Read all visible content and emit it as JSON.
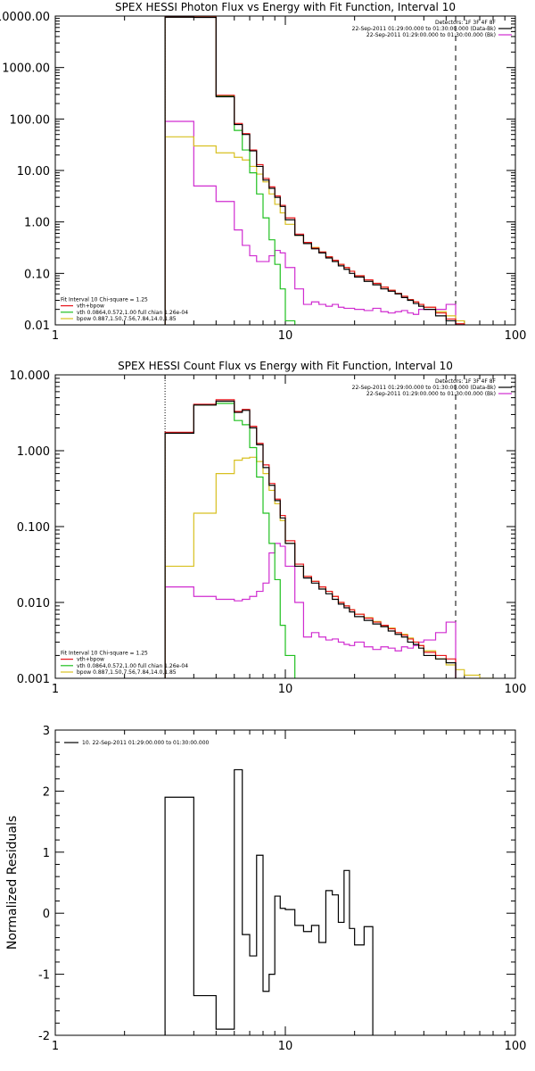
{
  "colors": {
    "axes": "#000000",
    "total": "#000000",
    "fit_sum": "#e8151b",
    "vth": "#20c020",
    "bpow": "#d8c020",
    "background": "#d02cd0",
    "fit_range": "#000000"
  },
  "chart_data": [
    {
      "type": "line",
      "title": "SPEX HESSI Photon Flux vs Energy with Fit Function, Interval 10",
      "xscale": "log",
      "yscale": "log",
      "xlim": [
        1,
        100
      ],
      "ylim": [
        0.01,
        10000
      ],
      "xticks": [
        1,
        10,
        100
      ],
      "xticklabels": [
        "1",
        "10",
        "100"
      ],
      "yticks": [
        0.01,
        0.1,
        1,
        10,
        100,
        1000,
        10000
      ],
      "yticklabels": [
        "0.01",
        "0.10",
        "1.00",
        "10.00",
        "100.00",
        "1000.00",
        "10000.00"
      ],
      "xlabel": "",
      "ylabel": "",
      "legend_top": {
        "position": "top-right",
        "lines": [
          {
            "text": "Detectors: 1F 3F 4F 8F",
            "color": ""
          },
          {
            "text": "22-Sep-2011 01:29:00.000 to 01:30:00.000 (Data-Bk)",
            "color": "#000000"
          },
          {
            "text": "22-Sep-2011 01:29:00.000 to 01:30:00.000 (Bk)",
            "color": "#d02cd0"
          }
        ]
      },
      "legend_bottom": {
        "position": "bottom-left",
        "lines": [
          {
            "text": "Fit Interval 10   Chi-square = 1.25",
            "color": ""
          },
          {
            "text": "vth+bpow",
            "color": "#e8151b"
          },
          {
            "text": "vth 0.0864,0.572,1.00  full chian 1.26e-04",
            "color": "#20c020"
          },
          {
            "text": "bpow 0.887,1.50,7.56,7.84,14.0,1.85",
            "color": "#d8c020"
          }
        ]
      },
      "fit_range": [
        3,
        55
      ],
      "edges": [
        3,
        4,
        5,
        6,
        6.5,
        7,
        7.5,
        8,
        8.5,
        9,
        9.5,
        10,
        11,
        12,
        13,
        14,
        15,
        16,
        17,
        18,
        19,
        20,
        22,
        24,
        26,
        28,
        30,
        32,
        34,
        36,
        38,
        40,
        45,
        50,
        55,
        60
      ],
      "series": [
        {
          "name": "",
          "color": "#000000",
          "values": [
            9500,
            9400,
            270,
            78,
            50,
            24,
            12,
            6.5,
            4.5,
            3.0,
            2.0,
            1.1,
            0.55,
            0.38,
            0.3,
            0.25,
            0.2,
            0.17,
            0.14,
            0.12,
            0.1,
            0.085,
            0.07,
            0.06,
            0.05,
            0.045,
            0.04,
            0.034,
            0.03,
            0.026,
            0.023,
            0.02,
            0.015,
            0.012,
            0.01
          ]
        },
        {
          "name": "vth+bpow",
          "color": "#e8151b",
          "values": [
            9600,
            9500,
            290,
            82,
            52,
            25,
            13,
            7,
            4.8,
            3.2,
            2.1,
            1.2,
            0.58,
            0.4,
            0.31,
            0.26,
            0.21,
            0.18,
            0.15,
            0.13,
            0.11,
            0.09,
            0.075,
            0.064,
            0.054,
            0.047,
            0.041,
            0.036,
            0.031,
            0.028,
            0.025,
            0.022,
            0.017,
            0.013,
            0.0105
          ]
        },
        {
          "name": "vth 0.0864,0.572,1.00  full chian 1.26e-04",
          "color": "#20c020",
          "values": [
            9600,
            9500,
            280,
            60,
            25,
            9,
            3.5,
            1.2,
            0.45,
            0.15,
            0.05,
            0.012,
            0.009,
            0.009,
            0.009,
            0.009,
            0.009,
            0.009,
            0.009,
            0.009,
            0.009,
            0.009,
            0.009,
            0.009,
            0.009,
            0.009,
            0.009,
            0.009,
            0.009,
            0.009,
            0.009,
            0.009,
            0.009,
            0.009,
            0.009
          ]
        },
        {
          "name": "bpow 0.887,1.50,7.56,7.84,14.0,1.85",
          "color": "#d8c020",
          "values": [
            45,
            30,
            22,
            18,
            16,
            12,
            8.5,
            6,
            3.5,
            2.2,
            1.5,
            0.9,
            0.55,
            0.4,
            0.32,
            0.26,
            0.21,
            0.18,
            0.15,
            0.13,
            0.11,
            0.09,
            0.075,
            0.064,
            0.054,
            0.047,
            0.041,
            0.036,
            0.031,
            0.028,
            0.025,
            0.022,
            0.018,
            0.015,
            0.012
          ]
        },
        {
          "name": "22-Sep-2011 01:29:00.000 to 01:30:00.000 (Bk)",
          "color": "#d02cd0",
          "values": [
            90,
            5,
            2.5,
            0.7,
            0.35,
            0.22,
            0.17,
            0.17,
            0.22,
            0.28,
            0.25,
            0.13,
            0.05,
            0.025,
            0.028,
            0.025,
            0.023,
            0.025,
            0.022,
            0.021,
            0.021,
            0.02,
            0.019,
            0.021,
            0.018,
            0.017,
            0.018,
            0.019,
            0.017,
            0.016,
            0.02,
            0.02,
            0.02,
            0.025,
            0.01
          ]
        }
      ]
    },
    {
      "type": "line",
      "title": "SPEX HESSI Count Flux vs Energy with Fit Function, Interval 10",
      "xscale": "log",
      "yscale": "log",
      "xlim": [
        1,
        100
      ],
      "ylim": [
        0.001,
        10
      ],
      "xticks": [
        1,
        10,
        100
      ],
      "xticklabels": [
        "1",
        "10",
        "100"
      ],
      "yticks": [
        0.001,
        0.01,
        0.1,
        1,
        10
      ],
      "yticklabels": [
        "0.001",
        "0.010",
        "0.100",
        "1.000",
        "10.000"
      ],
      "xlabel": "",
      "ylabel": "",
      "legend_top": {
        "position": "top-right",
        "lines": [
          {
            "text": "Detectors: 1F 3F 4F 8F",
            "color": ""
          },
          {
            "text": "22-Sep-2011 01:29:00.000 to 01:30:00.000 (Data-Bk)",
            "color": "#000000"
          },
          {
            "text": "22-Sep-2011 01:29:00.000 to 01:30:00.000 (Bk)",
            "color": "#d02cd0"
          }
        ]
      },
      "legend_bottom": {
        "position": "bottom-left",
        "lines": [
          {
            "text": "Fit Interval 10   Chi-square = 1.25",
            "color": ""
          },
          {
            "text": "vth+bpow",
            "color": "#e8151b"
          },
          {
            "text": "vth 0.0864,0.572,1.00  full chian 1.26e-04",
            "color": "#20c020"
          },
          {
            "text": "bpow 0.887,1.50,7.56,7.84,14.0,1.85",
            "color": "#d8c020"
          }
        ]
      },
      "fit_range": [
        3,
        55
      ],
      "edges": [
        3,
        4,
        5,
        6,
        6.5,
        7,
        7.5,
        8,
        8.5,
        9,
        9.5,
        10,
        11,
        12,
        13,
        14,
        15,
        16,
        17,
        18,
        19,
        20,
        22,
        24,
        26,
        28,
        30,
        32,
        34,
        36,
        38,
        40,
        45,
        50,
        55,
        60,
        70,
        80,
        90
      ],
      "series": [
        {
          "name": "",
          "color": "#000000",
          "values": [
            1.7,
            4.0,
            4.5,
            3.2,
            3.4,
            2.0,
            1.2,
            0.6,
            0.35,
            0.22,
            0.13,
            0.06,
            0.03,
            0.021,
            0.018,
            0.015,
            0.013,
            0.011,
            0.0095,
            0.0085,
            0.0075,
            0.0065,
            0.0058,
            0.0052,
            0.0048,
            0.0042,
            0.0038,
            0.0035,
            0.003,
            0.0028,
            0.0025,
            0.002,
            0.0018,
            0.0016
          ]
        },
        {
          "name": "vth+bpow",
          "color": "#e8151b",
          "values": [
            1.75,
            4.1,
            4.7,
            3.3,
            3.5,
            2.1,
            1.25,
            0.65,
            0.37,
            0.23,
            0.14,
            0.065,
            0.032,
            0.022,
            0.019,
            0.016,
            0.014,
            0.012,
            0.01,
            0.009,
            0.008,
            0.007,
            0.0062,
            0.0055,
            0.005,
            0.0045,
            0.004,
            0.0037,
            0.0033,
            0.003,
            0.0027,
            0.0022,
            0.002,
            0.0018
          ]
        },
        {
          "name": "vth 0.0864,0.572,1.00  full chian 1.26e-04",
          "color": "#20c020",
          "values": [
            1.7,
            4.0,
            4.2,
            2.5,
            2.2,
            1.1,
            0.45,
            0.15,
            0.06,
            0.02,
            0.005,
            0.002,
            0.0008
          ]
        },
        {
          "name": "bpow 0.887,1.50,7.56,7.84,14.0,1.85",
          "color": "#d8c020",
          "values": [
            0.03,
            0.15,
            0.5,
            0.75,
            0.8,
            0.82,
            0.72,
            0.5,
            0.3,
            0.2,
            0.12,
            0.06,
            0.03,
            0.022,
            0.019,
            0.016,
            0.014,
            0.012,
            0.01,
            0.009,
            0.008,
            0.007,
            0.0063,
            0.0056,
            0.005,
            0.0046,
            0.004,
            0.0038,
            0.0034,
            0.003,
            0.0027,
            0.0023,
            0.0018,
            0.0015,
            0.0013,
            0.0011,
            0.001,
            0.0009
          ]
        },
        {
          "name": "22-Sep-2011 01:29:00.000 to 01:30:00.000 (Bk)",
          "color": "#d02cd0",
          "values": [
            0.016,
            0.012,
            0.011,
            0.0105,
            0.011,
            0.012,
            0.014,
            0.018,
            0.045,
            0.06,
            0.055,
            0.03,
            0.01,
            0.0035,
            0.004,
            0.0035,
            0.0032,
            0.0033,
            0.003,
            0.0028,
            0.0027,
            0.003,
            0.0026,
            0.0024,
            0.0026,
            0.0025,
            0.0023,
            0.0026,
            0.0025,
            0.0027,
            0.003,
            0.0032,
            0.004,
            0.0055
          ]
        }
      ]
    },
    {
      "type": "line",
      "title": "",
      "xscale": "log",
      "yscale": "linear",
      "xlim": [
        1,
        100
      ],
      "ylim": [
        -2,
        3
      ],
      "xticks": [
        1,
        10,
        100
      ],
      "xticklabels": [
        "1",
        "10",
        "100"
      ],
      "yticks": [
        -2,
        -1,
        0,
        1,
        2,
        3
      ],
      "yticklabels": [
        "-2",
        "-1",
        "0",
        "1",
        "2",
        "3"
      ],
      "xlabel": "",
      "ylabel": "Normalized Residuals",
      "legend_top": {
        "position": "top-left",
        "lines": [
          {
            "text": "10. 22-Sep-2011 01:29:00.000 to 01:30:00.000",
            "color": "#000000"
          }
        ]
      },
      "edges": [
        3,
        4,
        5,
        6,
        6.5,
        7,
        7.5,
        8,
        8.5,
        9,
        9.5,
        10,
        11,
        12,
        13,
        14,
        15,
        16,
        17,
        18,
        19,
        20,
        22,
        24,
        26,
        28,
        30,
        32,
        34,
        36,
        38,
        40,
        45,
        50,
        55
      ],
      "series": [
        {
          "name": "10. 22-Sep-2011 01:29:00.000 to 01:30:00.000",
          "color": "#000000",
          "values": [
            1.9,
            -1.35,
            -1.9,
            2.35,
            -0.35,
            -0.7,
            0.95,
            -1.28,
            -1.0,
            0.28,
            0.08,
            0.06,
            -0.2,
            -0.3,
            -0.2,
            -0.48,
            0.37,
            0.3,
            -0.15,
            0.7,
            -0.25,
            -0.52,
            -0.22,
            -2.05
          ]
        }
      ]
    }
  ]
}
